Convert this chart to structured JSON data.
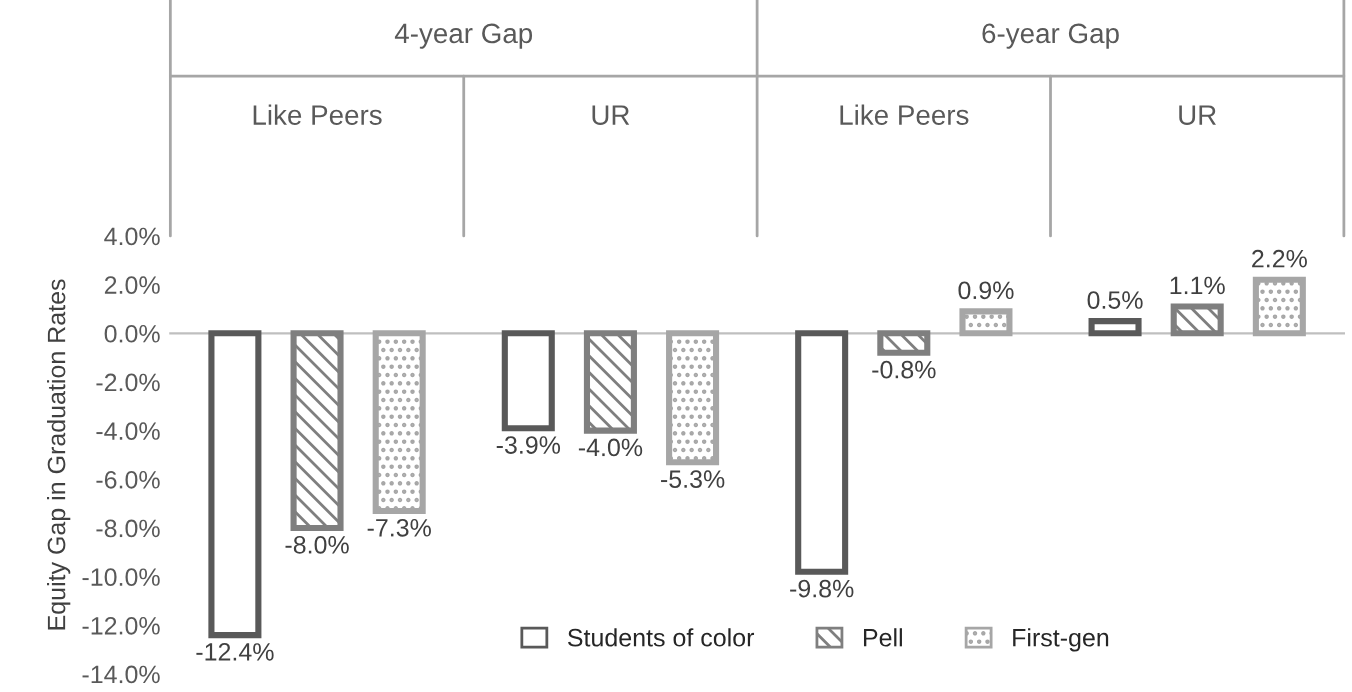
{
  "chart_data": {
    "type": "bar",
    "categories": [
      "Like Peers",
      "UR",
      "Like Peers",
      "UR"
    ],
    "annotations": [
      "4-year Gap",
      "6-year Gap"
    ],
    "ylabel": "Equity Gap in Graduation Rates",
    "series": [
      {
        "name": "Students of color",
        "color": "#595959",
        "values": [
          -12.4,
          -3.9,
          -9.8,
          0.5
        ]
      },
      {
        "name": "Pell",
        "color": "#7f7f7f",
        "values": [
          -8.0,
          -4.0,
          -0.8,
          1.1
        ]
      },
      {
        "name": "First-gen",
        "color": "#a6a6a6",
        "values": [
          -7.3,
          -5.3,
          0.9,
          2.2
        ]
      }
    ],
    "ylim": [
      -14,
      4
    ],
    "yticks": [
      {
        "value": -14,
        "label": "-14.0%"
      },
      {
        "value": -12,
        "label": "-12.0%"
      },
      {
        "value": -10,
        "label": "-10.0%"
      },
      {
        "value": -8,
        "label": "-8.0%"
      },
      {
        "value": -6,
        "label": "-6.0%"
      },
      {
        "value": -4,
        "label": "-4.0%"
      },
      {
        "value": -2,
        "label": "-2.0%"
      },
      {
        "value": 0,
        "label": "0.0%"
      },
      {
        "value": 2,
        "label": "2.0%"
      },
      {
        "value": 4,
        "label": "4.0%"
      }
    ],
    "value_labels": [
      [
        "-12.4%",
        "-3.9%",
        "-9.8%",
        "0.5%"
      ],
      [
        "-8.0%",
        "-4.0%",
        "-0.8%",
        "1.1%"
      ],
      [
        "-7.3%",
        "-5.3%",
        "0.9%",
        "2.2%"
      ]
    ],
    "legend": "bottom"
  }
}
